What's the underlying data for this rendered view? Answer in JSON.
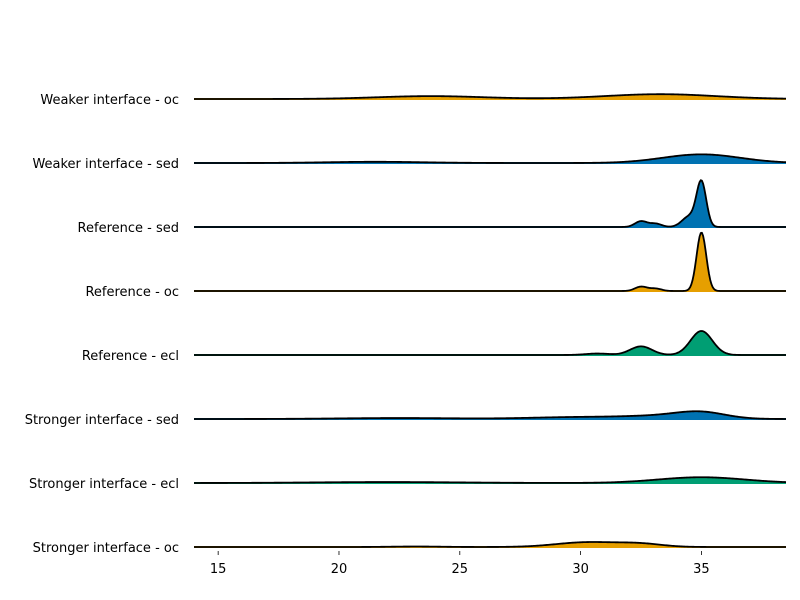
{
  "chart_data": {
    "type": "ridgeline",
    "title": "",
    "xlabel": "",
    "ylabel": "",
    "xlim": [
      14,
      38.5
    ],
    "xticks": [
      15,
      20,
      25,
      30,
      35
    ],
    "grid": false,
    "legend": "none",
    "colors": {
      "oc": "#E69F00",
      "sed": "#0072B2",
      "ecl": "#009E73",
      "outline": "#000000"
    },
    "series": [
      {
        "name": "Weaker interface - oc",
        "color_key": "oc",
        "components": [
          {
            "mu": 23.8,
            "sigma": 2.2,
            "h": 0.06
          },
          {
            "mu": 33.3,
            "sigma": 2.3,
            "h": 0.1
          }
        ]
      },
      {
        "name": "Weaker interface - sed",
        "color_key": "sed",
        "components": [
          {
            "mu": 21.5,
            "sigma": 2.0,
            "h": 0.025
          },
          {
            "mu": 35.0,
            "sigma": 1.6,
            "h": 0.18
          }
        ]
      },
      {
        "name": "Reference - sed",
        "color_key": "sed",
        "components": [
          {
            "mu": 32.5,
            "sigma": 0.25,
            "h": 0.12
          },
          {
            "mu": 33.1,
            "sigma": 0.25,
            "h": 0.07
          },
          {
            "mu": 34.5,
            "sigma": 0.3,
            "h": 0.22
          },
          {
            "mu": 35.0,
            "sigma": 0.2,
            "h": 0.92
          }
        ]
      },
      {
        "name": "Reference - oc",
        "color_key": "oc",
        "components": [
          {
            "mu": 32.5,
            "sigma": 0.25,
            "h": 0.09
          },
          {
            "mu": 33.1,
            "sigma": 0.25,
            "h": 0.05
          },
          {
            "mu": 35.0,
            "sigma": 0.2,
            "h": 1.22
          }
        ]
      },
      {
        "name": "Reference - ecl",
        "color_key": "ecl",
        "components": [
          {
            "mu": 30.7,
            "sigma": 0.5,
            "h": 0.03
          },
          {
            "mu": 32.5,
            "sigma": 0.45,
            "h": 0.18
          },
          {
            "mu": 35.0,
            "sigma": 0.45,
            "h": 0.5
          }
        ]
      },
      {
        "name": "Stronger interface - sed",
        "color_key": "sed",
        "components": [
          {
            "mu": 22.5,
            "sigma": 2.5,
            "h": 0.02
          },
          {
            "mu": 30.0,
            "sigma": 2.0,
            "h": 0.04
          },
          {
            "mu": 33.5,
            "sigma": 1.5,
            "h": 0.06
          },
          {
            "mu": 35.0,
            "sigma": 1.0,
            "h": 0.12
          }
        ]
      },
      {
        "name": "Stronger interface - ecl",
        "color_key": "ecl",
        "components": [
          {
            "mu": 22.0,
            "sigma": 3.0,
            "h": 0.02
          },
          {
            "mu": 35.0,
            "sigma": 1.8,
            "h": 0.12
          }
        ]
      },
      {
        "name": "Stronger interface - oc",
        "color_key": "oc",
        "components": [
          {
            "mu": 23.2,
            "sigma": 1.0,
            "h": 0.01
          },
          {
            "mu": 30.3,
            "sigma": 1.3,
            "h": 0.1
          },
          {
            "mu": 32.5,
            "sigma": 0.9,
            "h": 0.06
          }
        ]
      }
    ]
  }
}
